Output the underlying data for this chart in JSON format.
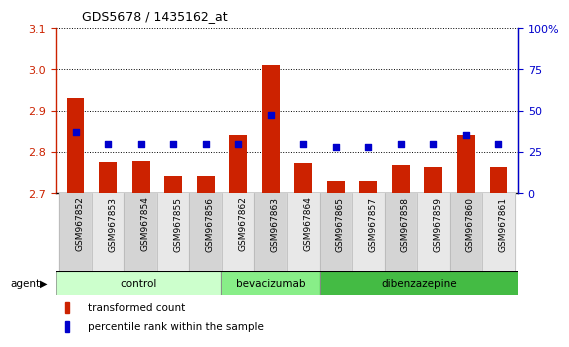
{
  "title": "GDS5678 / 1435162_at",
  "samples": [
    "GSM967852",
    "GSM967853",
    "GSM967854",
    "GSM967855",
    "GSM967856",
    "GSM967862",
    "GSM967863",
    "GSM967864",
    "GSM967865",
    "GSM967857",
    "GSM967858",
    "GSM967859",
    "GSM967860",
    "GSM967861"
  ],
  "transformed_count": [
    2.93,
    2.775,
    2.778,
    2.74,
    2.74,
    2.84,
    3.01,
    2.773,
    2.73,
    2.73,
    2.768,
    2.763,
    2.84,
    2.763
  ],
  "percentile_rank": [
    37,
    30,
    30,
    30,
    30,
    30,
    47,
    30,
    28,
    28,
    30,
    30,
    35,
    30
  ],
  "groups": [
    {
      "label": "control",
      "start": 0,
      "end": 5,
      "color": "#ccffcc"
    },
    {
      "label": "bevacizumab",
      "start": 5,
      "end": 8,
      "color": "#88ee88"
    },
    {
      "label": "dibenzazepine",
      "start": 8,
      "end": 14,
      "color": "#44bb44"
    }
  ],
  "ylim_left": [
    2.7,
    3.1
  ],
  "ylim_right": [
    0,
    100
  ],
  "yticks_left": [
    2.7,
    2.8,
    2.9,
    3.0,
    3.1
  ],
  "yticks_right": [
    0,
    25,
    50,
    75,
    100
  ],
  "bar_color": "#cc2200",
  "dot_color": "#0000cc",
  "background_color": "#ffffff",
  "agent_label": "agent",
  "legend_bar": "transformed count",
  "legend_dot": "percentile rank within the sample",
  "sample_col_colors": [
    "#d4d4d4",
    "#e8e8e8"
  ]
}
